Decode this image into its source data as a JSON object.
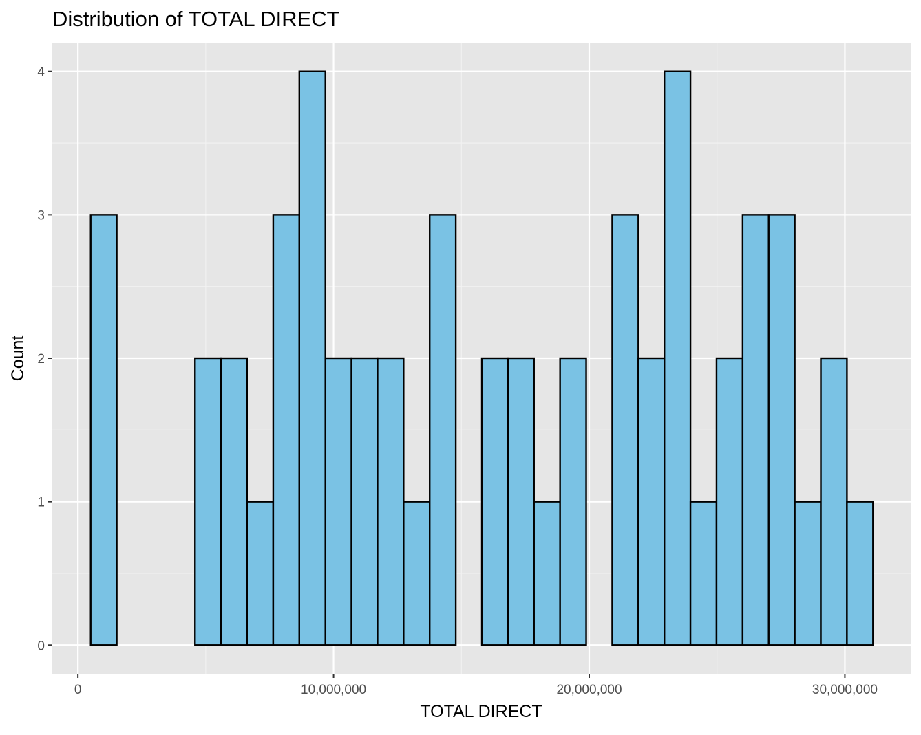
{
  "chart_data": {
    "type": "bar",
    "title": "Distribution of TOTAL DIRECT",
    "xlabel": "TOTAL DIRECT",
    "ylabel": "Count",
    "bin_edges": [
      500000,
      1520000,
      2540000,
      3560000,
      4580000,
      5600000,
      6620000,
      7640000,
      8660000,
      9680000,
      10700000,
      11720000,
      12740000,
      13760000,
      14780000,
      15800000,
      16820000,
      17840000,
      18860000,
      19880000,
      20900000,
      21920000,
      22940000,
      23960000,
      24980000,
      26000000,
      27020000,
      28040000,
      29060000,
      30080000,
      31100000
    ],
    "values": [
      3,
      0,
      0,
      0,
      2,
      2,
      1,
      3,
      4,
      2,
      2,
      2,
      1,
      3,
      0,
      2,
      2,
      1,
      2,
      0,
      3,
      2,
      4,
      1,
      2,
      3,
      3,
      1,
      2,
      1
    ],
    "xlim": [
      -1000000,
      32600000
    ],
    "ylim": [
      -0.2,
      4.2
    ],
    "x_ticks": [
      0,
      10000000,
      20000000,
      30000000
    ],
    "x_tick_labels": [
      "0",
      "10,000,000",
      "20,000,000",
      "30,000,000"
    ],
    "y_ticks": [
      0,
      1,
      2,
      3,
      4
    ],
    "y_tick_labels": [
      "0",
      "1",
      "2",
      "3",
      "4"
    ],
    "grid": true,
    "legend": "none",
    "colors": {
      "bar_fill": "#7ac2e4",
      "bar_stroke": "#000000",
      "panel_background": "#e6e6e6",
      "grid_major": "#ffffff",
      "grid_minor": "#f2f2f2",
      "tick_color": "#333333"
    }
  }
}
